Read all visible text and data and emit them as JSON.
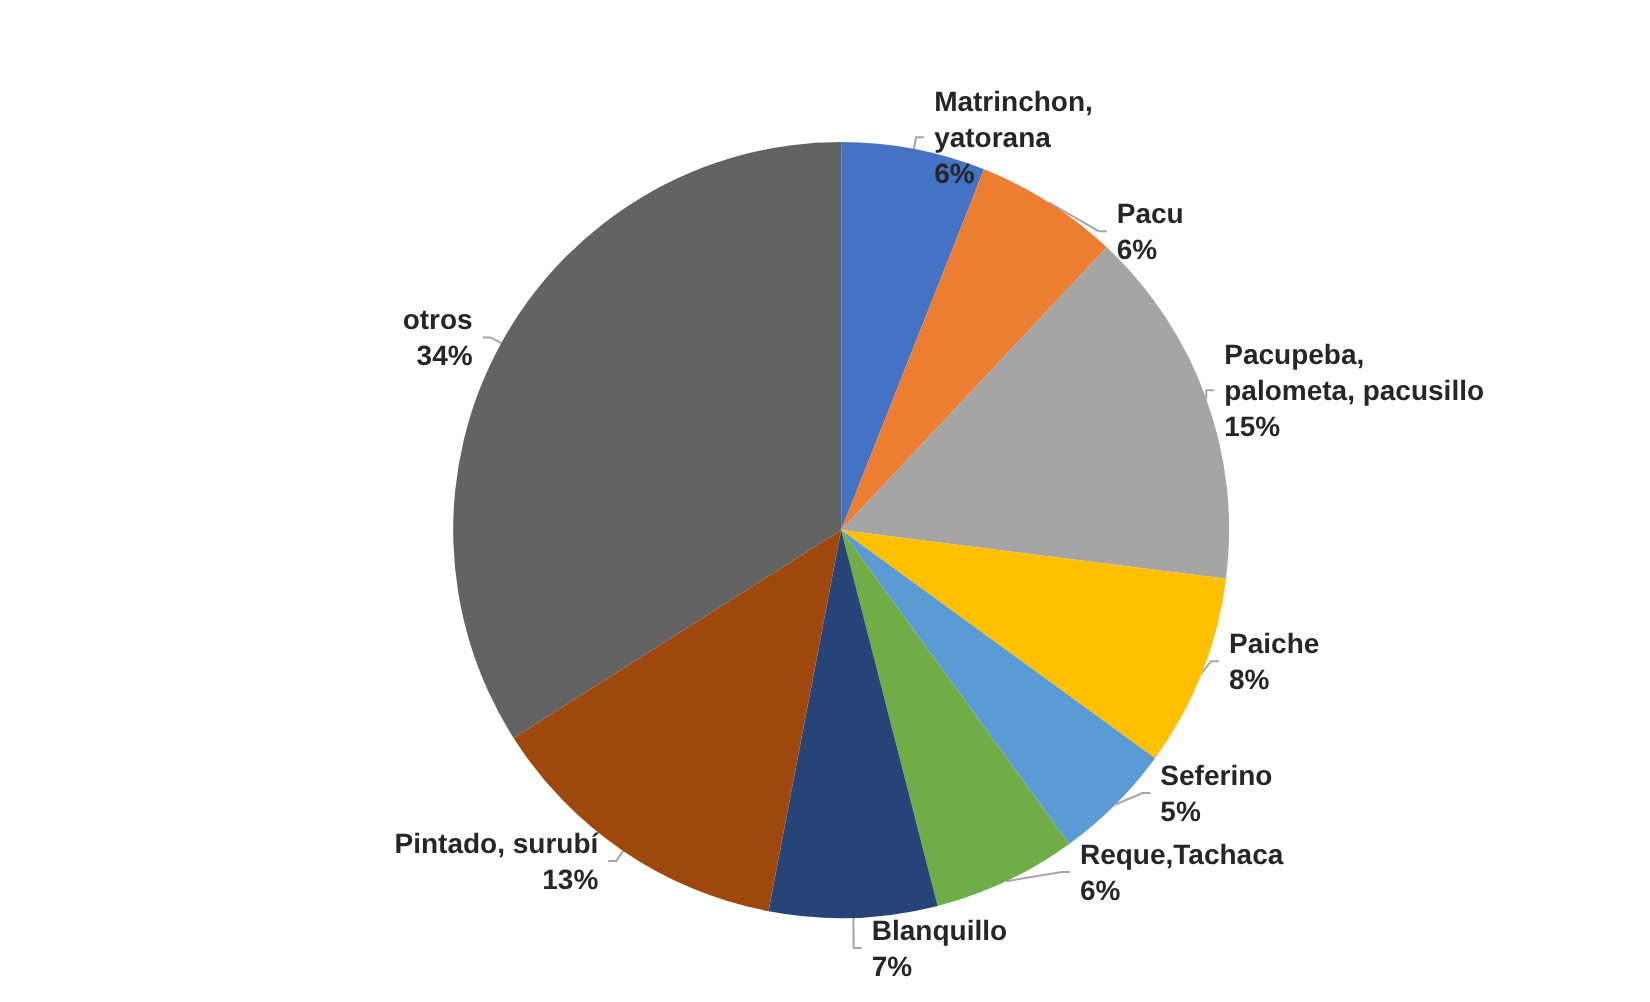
{
  "chart_data": {
    "type": "pie",
    "categories": [
      "Matrinchon, yatorana",
      "Pacu",
      "Pacupeba, palometa, pacusillo",
      "Paiche",
      "Seferino",
      "Reque,Tachaca",
      "Blanquillo",
      "Pintado, surubí",
      "otros"
    ],
    "values": [
      6,
      6,
      15,
      8,
      5,
      6,
      7,
      13,
      34
    ],
    "colors": [
      "#4472c4",
      "#ed7d31",
      "#a5a5a5",
      "#ffc000",
      "#5b9bd5",
      "#70ad47",
      "#264478",
      "#9e480e",
      "#636363"
    ],
    "value_labels": [
      "6%",
      "6%",
      "15%",
      "8%",
      "5%",
      "6%",
      "7%",
      "13%",
      "34%"
    ],
    "legend": false
  }
}
